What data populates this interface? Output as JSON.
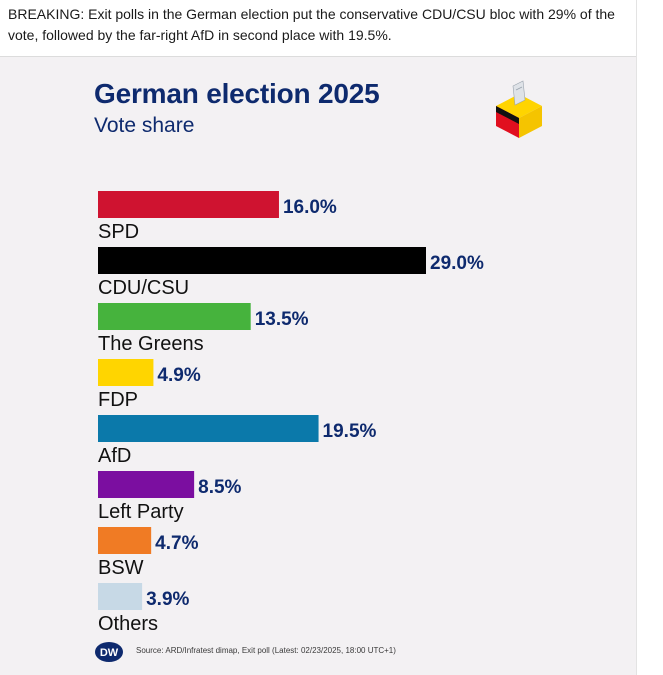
{
  "post": {
    "text": "BREAKING: Exit polls in the German election put the conservative CDU/CSU bloc with 29% of the vote, followed by the far-right AfD in second place with 19.5%."
  },
  "graphic": {
    "title": "German election 2025",
    "subtitle": "Vote share",
    "logo_text": "DW",
    "source": "Source: ARD/Infratest dimap, Exit poll (Latest: 02/23/2025, 18:00 UTC+1)"
  },
  "chart_data": {
    "type": "bar",
    "orientation": "horizontal",
    "title": "German election 2025",
    "subtitle": "Vote share",
    "unit": "%",
    "categories": [
      "SPD",
      "CDU/CSU",
      "The Greens",
      "FDP",
      "AfD",
      "Left Party",
      "BSW",
      "Others"
    ],
    "values": [
      16.0,
      29.0,
      13.5,
      4.9,
      19.5,
      8.5,
      4.7,
      3.9
    ],
    "value_labels": [
      "16.0%",
      "29.0%",
      "13.5%",
      "4.9%",
      "19.5%",
      "8.5%",
      "4.7%",
      "3.9%"
    ],
    "colors": [
      "#cf1330",
      "#000000",
      "#46b33d",
      "#ffd500",
      "#0b79aa",
      "#7b0ea0",
      "#f07b24",
      "#c7d9e6"
    ],
    "xlim": [
      0,
      29.0
    ],
    "grid": false
  },
  "colors": {
    "title": "#0e2a6e",
    "card_background": "#f3f1f3"
  }
}
